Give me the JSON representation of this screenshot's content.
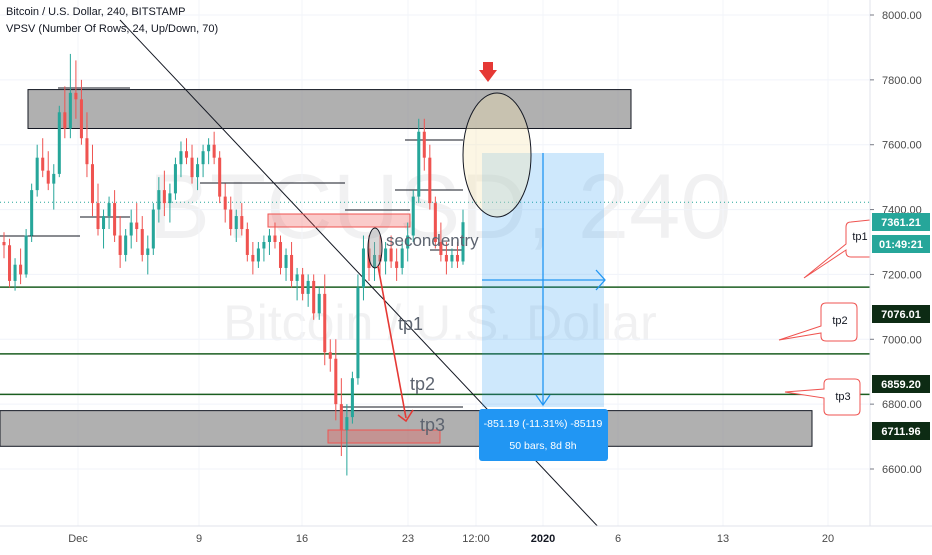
{
  "header": {
    "symbol_line": "Bitcoin / U.S. Dollar, 240, BITSTAMP",
    "indicator_line": "VPSV (Number Of Rows, 24, Up/Down, 70)"
  },
  "watermark": {
    "ticker": "BTCUSD, 240",
    "name": "Bitcoin / U.S. Dollar"
  },
  "colors": {
    "up": "#26a69a",
    "down": "#ef5350",
    "zone_gray": "#8f8f8f",
    "target_green": "#1b5e20",
    "projection_blue": "#2196f3",
    "arrow_red": "#e53935",
    "price_label_dark": "#0d2b14",
    "current_price_label": "#26a69a",
    "axis_text": "#4a4a4a"
  },
  "chart_data": {
    "type": "candlestick",
    "title": "Bitcoin / U.S. Dollar, 240, BITSTAMP",
    "interval": "240",
    "yaxis": {
      "ticks": [
        6600,
        6800,
        7000,
        7200,
        7400,
        7600,
        7800,
        8000
      ],
      "tick_labels": [
        "6600.00",
        "6800.00",
        "7000.00",
        "7200.00",
        "7400.00",
        "7600.00",
        "7800.00",
        "8000.00"
      ],
      "range": [
        6500,
        8050
      ]
    },
    "xaxis": {
      "tick_labels": [
        "Dec",
        "9",
        "16",
        "23",
        "12:00",
        "2020",
        "6",
        "13",
        "20"
      ],
      "bold_label": "2020"
    },
    "price_labels": [
      {
        "value": "7361.21",
        "style": "current"
      },
      {
        "value": "01:49:21",
        "style": "countdown"
      },
      {
        "value": "7076.01",
        "style": "level"
      },
      {
        "value": "6859.20",
        "style": "level"
      },
      {
        "value": "6711.96",
        "style": "level"
      }
    ],
    "horizontal_levels": [
      7161,
      6955,
      6830
    ],
    "zones": [
      {
        "label": "resistance",
        "from": 7650,
        "to": 7770
      },
      {
        "label": "support",
        "from": 6670,
        "to": 6780
      }
    ],
    "annotations": {
      "text": [
        "tp1",
        "tp2",
        "tp3",
        "secondentry"
      ],
      "callouts": [
        "tp1",
        "tp2",
        "tp3"
      ]
    },
    "measure": {
      "line1": "-851.19 (-11.31%) -85119",
      "line2": "50 bars, 8d 8h"
    },
    "candles": [
      [
        7300,
        7330,
        7250,
        7290
      ],
      [
        7290,
        7310,
        7160,
        7180
      ],
      [
        7180,
        7250,
        7150,
        7230
      ],
      [
        7230,
        7280,
        7170,
        7200
      ],
      [
        7200,
        7340,
        7190,
        7320
      ],
      [
        7320,
        7480,
        7300,
        7460
      ],
      [
        7460,
        7600,
        7440,
        7560
      ],
      [
        7560,
        7620,
        7500,
        7520
      ],
      [
        7520,
        7580,
        7460,
        7480
      ],
      [
        7480,
        7540,
        7400,
        7510
      ],
      [
        7510,
        7720,
        7500,
        7700
      ],
      [
        7700,
        7780,
        7620,
        7650
      ],
      [
        7650,
        7880,
        7620,
        7760
      ],
      [
        7760,
        7860,
        7680,
        7740
      ],
      [
        7740,
        7800,
        7600,
        7620
      ],
      [
        7620,
        7700,
        7500,
        7540
      ],
      [
        7540,
        7600,
        7380,
        7420
      ],
      [
        7420,
        7480,
        7320,
        7340
      ],
      [
        7340,
        7400,
        7280,
        7380
      ],
      [
        7380,
        7440,
        7340,
        7420
      ],
      [
        7420,
        7460,
        7300,
        7320
      ],
      [
        7320,
        7380,
        7220,
        7260
      ],
      [
        7260,
        7340,
        7240,
        7320
      ],
      [
        7320,
        7400,
        7280,
        7360
      ],
      [
        7360,
        7420,
        7300,
        7340
      ],
      [
        7340,
        7380,
        7240,
        7260
      ],
      [
        7260,
        7320,
        7200,
        7280
      ],
      [
        7280,
        7420,
        7260,
        7400
      ],
      [
        7400,
        7500,
        7360,
        7460
      ],
      [
        7460,
        7520,
        7380,
        7420
      ],
      [
        7420,
        7480,
        7360,
        7450
      ],
      [
        7450,
        7560,
        7430,
        7540
      ],
      [
        7540,
        7610,
        7500,
        7580
      ],
      [
        7580,
        7620,
        7540,
        7560
      ],
      [
        7560,
        7600,
        7480,
        7500
      ],
      [
        7500,
        7560,
        7460,
        7540
      ],
      [
        7540,
        7600,
        7500,
        7580
      ],
      [
        7580,
        7620,
        7540,
        7600
      ],
      [
        7600,
        7640,
        7540,
        7560
      ],
      [
        7560,
        7580,
        7420,
        7440
      ],
      [
        7440,
        7480,
        7360,
        7400
      ],
      [
        7400,
        7440,
        7320,
        7340
      ],
      [
        7340,
        7400,
        7300,
        7380
      ],
      [
        7380,
        7420,
        7320,
        7340
      ],
      [
        7340,
        7360,
        7240,
        7260
      ],
      [
        7260,
        7300,
        7200,
        7240
      ],
      [
        7240,
        7300,
        7220,
        7280
      ],
      [
        7280,
        7320,
        7240,
        7300
      ],
      [
        7300,
        7340,
        7260,
        7320
      ],
      [
        7320,
        7360,
        7280,
        7300
      ],
      [
        7300,
        7320,
        7200,
        7220
      ],
      [
        7220,
        7280,
        7180,
        7260
      ],
      [
        7260,
        7300,
        7160,
        7180
      ],
      [
        7180,
        7220,
        7120,
        7200
      ],
      [
        7200,
        7220,
        7120,
        7140
      ],
      [
        7140,
        7200,
        7100,
        7180
      ],
      [
        7180,
        7200,
        7060,
        7080
      ],
      [
        7080,
        7160,
        7060,
        7140
      ],
      [
        7140,
        7200,
        6920,
        6960
      ],
      [
        6960,
        7000,
        6900,
        6940
      ],
      [
        6940,
        7000,
        6750,
        6800
      ],
      [
        6800,
        6880,
        6640,
        6720
      ],
      [
        6720,
        6800,
        6580,
        6760
      ],
      [
        6760,
        6900,
        6740,
        6880
      ],
      [
        6880,
        7200,
        6860,
        7160
      ],
      [
        7160,
        7320,
        7120,
        7280
      ],
      [
        7280,
        7320,
        7180,
        7220
      ],
      [
        7220,
        7300,
        7180,
        7260
      ],
      [
        7260,
        7320,
        7200,
        7240
      ],
      [
        7240,
        7300,
        7200,
        7280
      ],
      [
        7280,
        7320,
        7220,
        7240
      ],
      [
        7240,
        7280,
        7180,
        7220
      ],
      [
        7220,
        7300,
        7200,
        7280
      ],
      [
        7280,
        7360,
        7240,
        7320
      ],
      [
        7320,
        7460,
        7300,
        7440
      ],
      [
        7440,
        7680,
        7420,
        7640
      ],
      [
        7640,
        7680,
        7520,
        7560
      ],
      [
        7560,
        7600,
        7400,
        7420
      ],
      [
        7420,
        7440,
        7280,
        7300
      ],
      [
        7300,
        7360,
        7240,
        7260
      ],
      [
        7260,
        7300,
        7200,
        7240
      ],
      [
        7240,
        7280,
        7220,
        7260
      ],
      [
        7260,
        7300,
        7220,
        7240
      ],
      [
        7240,
        7400,
        7230,
        7361
      ]
    ]
  }
}
